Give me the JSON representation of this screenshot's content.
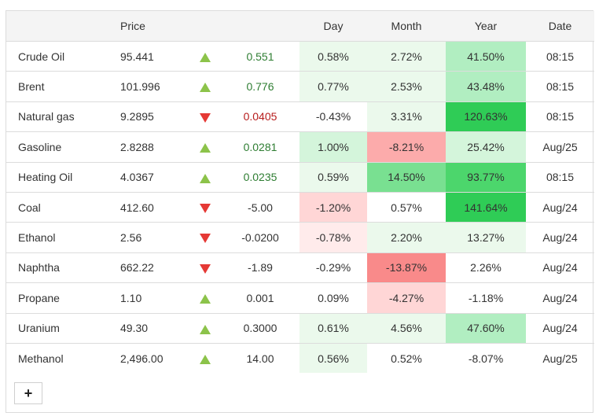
{
  "headers": {
    "name": "",
    "price": "Price",
    "direction": "",
    "change": "",
    "day": "Day",
    "month": "Month",
    "year": "Year",
    "date": "Date"
  },
  "colors": {
    "up_triangle": "#8cc34a",
    "down_triangle": "#e53935",
    "positive_text": "#2e7d32",
    "negative_text": "#b71c1c"
  },
  "rows": [
    {
      "name": "Crude Oil",
      "price": "95.441",
      "dir": "up",
      "change": "0.551",
      "change_class": "pos",
      "day": "0.58%",
      "day_bg": "#ebf9ec",
      "month": "2.72%",
      "month_bg": "#ebf9ec",
      "year": "41.50%",
      "year_bg": "#b1eec1",
      "date": "08:15"
    },
    {
      "name": "Brent",
      "price": "101.996",
      "dir": "up",
      "change": "0.776",
      "change_class": "pos",
      "day": "0.77%",
      "day_bg": "#ebf9ec",
      "month": "2.53%",
      "month_bg": "#ebf9ec",
      "year": "43.48%",
      "year_bg": "#b1eec1",
      "date": "08:15"
    },
    {
      "name": "Natural gas",
      "price": "9.2895",
      "dir": "down",
      "change": "0.0405",
      "change_class": "neg",
      "day": "-0.43%",
      "day_bg": "#ffffff",
      "month": "3.31%",
      "month_bg": "#ebf9ec",
      "year": "120.63%",
      "year_bg": "#2fcc56",
      "date": "08:15"
    },
    {
      "name": "Gasoline",
      "price": "2.8288",
      "dir": "up",
      "change": "0.0281",
      "change_class": "pos",
      "day": "1.00%",
      "day_bg": "#d4f5db",
      "month": "-8.21%",
      "month_bg": "#fcabab",
      "year": "25.42%",
      "year_bg": "#d4f5db",
      "date": "Aug/25"
    },
    {
      "name": "Heating Oil",
      "price": "4.0367",
      "dir": "up",
      "change": "0.0235",
      "change_class": "pos",
      "day": "0.59%",
      "day_bg": "#ebf9ec",
      "month": "14.50%",
      "month_bg": "#79e091",
      "year": "93.77%",
      "year_bg": "#4cd66c",
      "date": "08:15"
    },
    {
      "name": "Coal",
      "price": "412.60",
      "dir": "down",
      "change": "-5.00",
      "change_class": "neutral",
      "day": "-1.20%",
      "day_bg": "#ffd6d6",
      "month": "0.57%",
      "month_bg": "#ffffff",
      "year": "141.64%",
      "year_bg": "#2fcc56",
      "date": "Aug/24"
    },
    {
      "name": "Ethanol",
      "price": "2.56",
      "dir": "down",
      "change": "-0.0200",
      "change_class": "neutral",
      "day": "-0.78%",
      "day_bg": "#ffebeb",
      "month": "2.20%",
      "month_bg": "#ebf9ec",
      "year": "13.27%",
      "year_bg": "#ebf9ec",
      "date": "Aug/24"
    },
    {
      "name": "Naphtha",
      "price": "662.22",
      "dir": "down",
      "change": "-1.89",
      "change_class": "neutral",
      "day": "-0.29%",
      "day_bg": "#ffffff",
      "month": "-13.87%",
      "month_bg": "#f98a8a",
      "year": "2.26%",
      "year_bg": "#ffffff",
      "date": "Aug/24"
    },
    {
      "name": "Propane",
      "price": "1.10",
      "dir": "up",
      "change": "0.001",
      "change_class": "neutral",
      "day": "0.09%",
      "day_bg": "#ffffff",
      "month": "-4.27%",
      "month_bg": "#ffd6d6",
      "year": "-1.18%",
      "year_bg": "#ffffff",
      "date": "Aug/24"
    },
    {
      "name": "Uranium",
      "price": "49.30",
      "dir": "up",
      "change": "0.3000",
      "change_class": "neutral",
      "day": "0.61%",
      "day_bg": "#ebf9ec",
      "month": "4.56%",
      "month_bg": "#ebf9ec",
      "year": "47.60%",
      "year_bg": "#b1eec1",
      "date": "Aug/24"
    },
    {
      "name": "Methanol",
      "price": "2,496.00",
      "dir": "up",
      "change": "14.00",
      "change_class": "neutral",
      "day": "0.56%",
      "day_bg": "#ebf9ec",
      "month": "0.52%",
      "month_bg": "#ffffff",
      "year": "-8.07%",
      "year_bg": "#ffffff",
      "date": "Aug/25"
    }
  ],
  "add_button": {
    "label": "+",
    "icon": "plus-icon"
  }
}
